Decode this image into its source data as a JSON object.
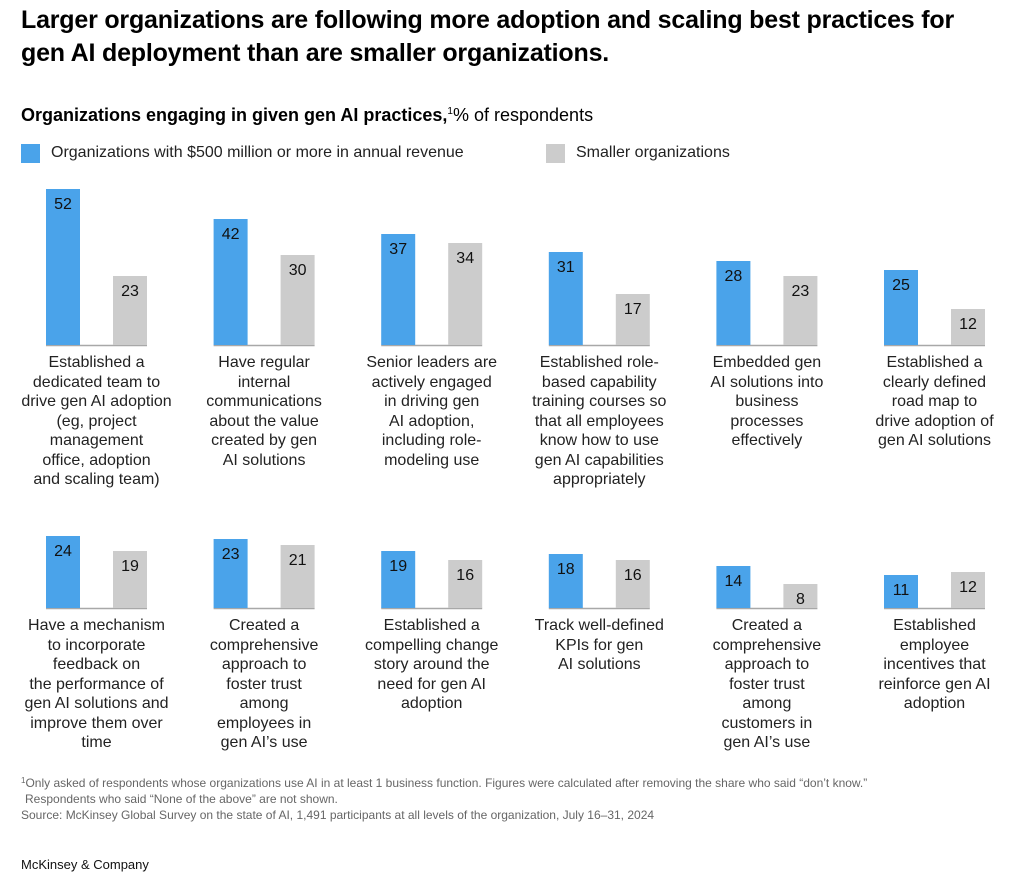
{
  "header": {
    "title": "Larger organizations are following more adoption and scaling best practices for gen AI deployment than are smaller organizations."
  },
  "chart_data": {
    "type": "bar",
    "title": "Larger organizations are following more adoption and scaling best practices for gen AI deployment than are smaller organizations.",
    "subtitle_bold": "Organizations engaging in given gen AI practices,",
    "subtitle_sup": "1",
    "subtitle_rest": "% of respondents",
    "xlabel": "",
    "ylabel": "% of respondents",
    "ylim": [
      0,
      52
    ],
    "grid": false,
    "legend_position": "top-left",
    "series": [
      {
        "name": "Organizations with $500 million or more in annual revenue",
        "color": "#4aa3ea",
        "values": [
          52,
          42,
          37,
          31,
          28,
          25,
          24,
          23,
          19,
          18,
          14,
          11
        ]
      },
      {
        "name": "Smaller organizations",
        "color": "#cccccc",
        "values": [
          23,
          30,
          34,
          17,
          23,
          12,
          19,
          21,
          16,
          16,
          8,
          12
        ]
      }
    ],
    "categories": [
      "Established a dedicated team to drive gen AI adoption (eg, project management office, adoption and scaling team)",
      "Have regular internal communications about the value created by gen AI solutions",
      "Senior leaders are actively engaged in driving gen AI adoption, including role-modeling use",
      "Established role-based capability training courses so that all employees know how to use gen AI capabilities appropriately",
      "Embedded gen AI solutions into business processes effectively",
      "Established a clearly defined road map to drive adoption of gen AI solutions",
      "Have a mechanism to incorporate feedback on the performance of gen AI solutions and improve them over time",
      "Created a comprehensive approach to foster trust among employees in gen AI’s use",
      "Established a compelling change story around the need for gen AI adoption",
      "Track well-defined KPIs for gen AI solutions",
      "Created a comprehensive approach to foster trust among customers in gen AI’s use",
      "Established employee incentives that reinforce gen AI adoption"
    ],
    "category_lines": [
      [
        "Established a",
        "dedicated team to",
        "drive gen AI adoption",
        "(eg, project",
        "management",
        "office, adoption",
        "and scaling team)"
      ],
      [
        "Have regular",
        "internal",
        "communications",
        "about the value",
        "created by gen",
        "AI solutions"
      ],
      [
        "Senior leaders are",
        "actively engaged",
        "in driving gen",
        "AI adoption,",
        "including role-",
        "modeling use"
      ],
      [
        "Established role-",
        "based capability",
        "training courses so",
        "that all employees",
        "know how to use",
        "gen AI capabilities",
        "appropriately"
      ],
      [
        "Embedded gen",
        "AI solutions into",
        "business",
        "processes",
        "effectively"
      ],
      [
        "Established a",
        "clearly defined",
        "road map to",
        "drive adoption of",
        "gen AI solutions"
      ],
      [
        "Have a mechanism",
        "to incorporate",
        "feedback on",
        "the performance of",
        "gen AI solutions and",
        "improve them over",
        "time"
      ],
      [
        "Created a",
        "comprehensive",
        "approach to",
        "foster trust",
        "among",
        "employees in",
        "gen AI’s use"
      ],
      [
        "Established a",
        "compelling change",
        "story around the",
        "need for gen AI",
        "adoption"
      ],
      [
        "Track well-defined",
        "KPIs for gen",
        "AI solutions"
      ],
      [
        "Created a",
        "comprehensive",
        "approach to",
        "foster trust",
        "among",
        "customers in",
        "gen AI’s use"
      ],
      [
        "Established",
        "employee",
        "incentives that",
        "reinforce gen AI",
        "adoption"
      ]
    ]
  },
  "footnotes": {
    "note_marker": "1",
    "note_line1": "Only asked of respondents whose organizations use AI in at least 1 business function. Figures were calculated after removing the share who said “don’t know.”",
    "note_line2": "Respondents who said “None of the above” are not shown.",
    "source": "Source: McKinsey Global Survey on the state of AI, 1,491 participants at all levels of the organization, July 16–31, 2024"
  },
  "brand": "McKinsey & Company"
}
